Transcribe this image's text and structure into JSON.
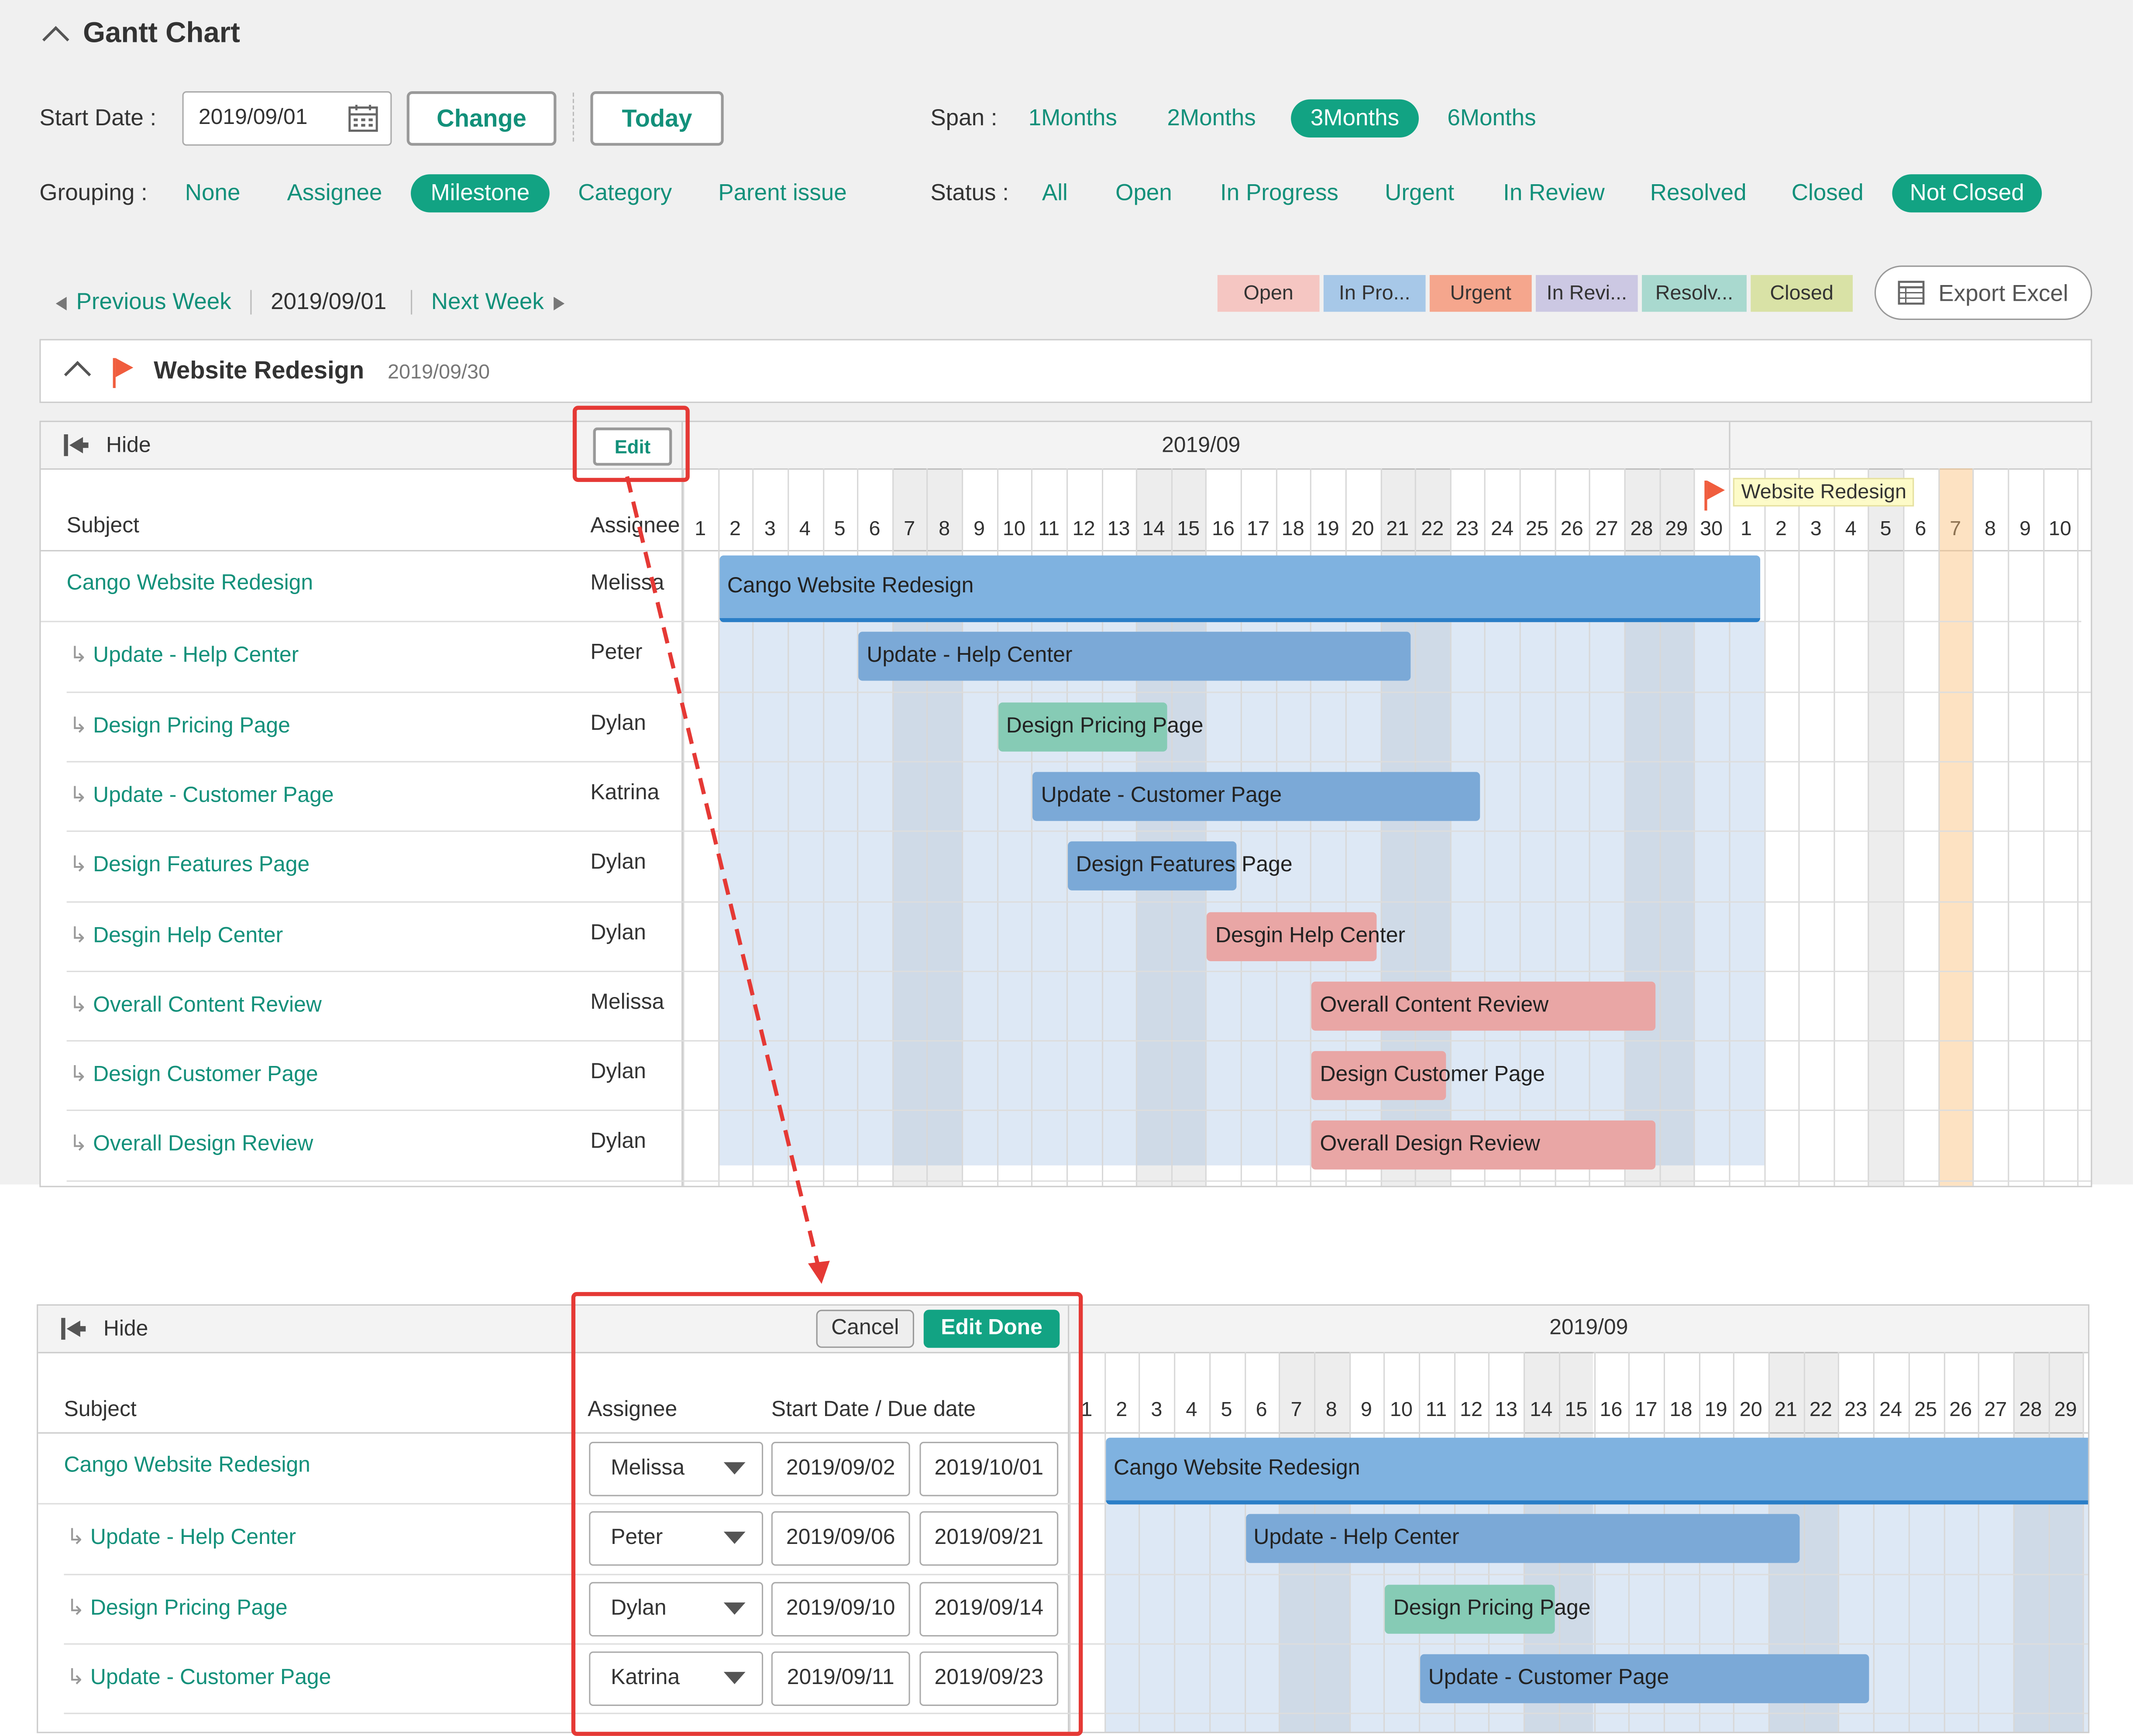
{
  "header": {
    "title": "Gantt Chart",
    "start_date_label": "Start Date :",
    "start_date_value": "2019/09/01",
    "change_label": "Change",
    "today_label": "Today",
    "span_label": "Span :",
    "span_options": [
      "1Months",
      "2Months",
      "3Months",
      "6Months"
    ],
    "span_selected": "3Months",
    "grouping_label": "Grouping :",
    "grouping_options": [
      "None",
      "Assignee",
      "Milestone",
      "Category",
      "Parent issue"
    ],
    "grouping_selected": "Milestone",
    "status_label": "Status :",
    "status_options": [
      "All",
      "Open",
      "In Progress",
      "Urgent",
      "In Review",
      "Resolved",
      "Closed",
      "Not Closed"
    ],
    "status_selected": "Not Closed"
  },
  "nav": {
    "previous_label": "Previous Week",
    "current_date": "2019/09/01",
    "next_label": "Next Week"
  },
  "legend": [
    {
      "label": "Open",
      "color": "#f5c6c2"
    },
    {
      "label": "In Pro...",
      "color": "#a7c8e8"
    },
    {
      "label": "Urgent",
      "color": "#f5a68d"
    },
    {
      "label": "In Revi...",
      "color": "#ccc8e3"
    },
    {
      "label": "Resolv...",
      "color": "#a9d9cf"
    },
    {
      "label": "Closed",
      "color": "#d9e2a6"
    }
  ],
  "export_label": "Export Excel",
  "milestone": {
    "name": "Website Redesign",
    "date": "2019/09/30"
  },
  "gantt": {
    "hide_label": "Hide",
    "edit_label": "Edit",
    "month_label": "2019/09",
    "subject_header": "Subject",
    "assignee_header": "Assignee",
    "milestone_marker_label": "Website Redesign",
    "days_top": [
      "1",
      "2",
      "3",
      "4",
      "5",
      "6",
      "7",
      "8",
      "9",
      "10",
      "11",
      "12",
      "13",
      "14",
      "15",
      "16",
      "17",
      "18",
      "19",
      "20",
      "21",
      "22",
      "23",
      "24",
      "25",
      "26",
      "27",
      "28",
      "29",
      "30",
      "1",
      "2",
      "3",
      "4",
      "5",
      "6",
      "7",
      "8",
      "9",
      "10"
    ],
    "tasks": [
      {
        "subject": "Cango Website Redesign",
        "assignee": "Melissa",
        "start": 2,
        "end": 31,
        "color": "#7fb2e0",
        "is_parent": true
      },
      {
        "subject": "Update - Help Center",
        "assignee": "Peter",
        "start": 6,
        "end": 21,
        "color": "#7ba9d7",
        "is_parent": false
      },
      {
        "subject": "Design Pricing Page",
        "assignee": "Dylan",
        "start": 10,
        "end": 14,
        "color": "#86cbb5",
        "is_parent": false
      },
      {
        "subject": "Update - Customer Page",
        "assignee": "Katrina",
        "start": 11,
        "end": 23,
        "color": "#7ba9d7",
        "is_parent": false
      },
      {
        "subject": "Design Features Page",
        "assignee": "Dylan",
        "start": 12,
        "end": 16,
        "color": "#7ba9d7",
        "is_parent": false
      },
      {
        "subject": "Desgin Help Center",
        "assignee": "Dylan",
        "start": 16,
        "end": 20,
        "color": "#e9a6a5",
        "is_parent": false
      },
      {
        "subject": "Overall Content Review",
        "assignee": "Melissa",
        "start": 19,
        "end": 28,
        "color": "#e9a6a5",
        "is_parent": false
      },
      {
        "subject": "Design Customer Page",
        "assignee": "Dylan",
        "start": 19,
        "end": 22,
        "color": "#e9a6a5",
        "is_parent": false
      },
      {
        "subject": "Overall Design Review",
        "assignee": "Dylan",
        "start": 19,
        "end": 28,
        "color": "#e9a6a5",
        "is_parent": false
      }
    ]
  },
  "edit_view": {
    "hide_label": "Hide",
    "cancel_label": "Cancel",
    "done_label": "Edit Done",
    "month_label": "2019/09",
    "subject_header": "Subject",
    "assignee_header": "Assignee",
    "dates_header": "Start Date / Due date",
    "days": [
      "1",
      "2",
      "3",
      "4",
      "5",
      "6",
      "7",
      "8",
      "9",
      "10",
      "11",
      "12",
      "13",
      "14",
      "15",
      "16",
      "17",
      "18",
      "19",
      "20",
      "21",
      "22",
      "23",
      "24",
      "25",
      "26",
      "27",
      "28",
      "29"
    ],
    "rows": [
      {
        "subject": "Cango Website Redesign",
        "assignee": "Melissa",
        "start_date": "2019/09/02",
        "due_date": "2019/10/01",
        "is_parent": true
      },
      {
        "subject": "Update - Help Center",
        "assignee": "Peter",
        "start_date": "2019/09/06",
        "due_date": "2019/09/21",
        "is_parent": false
      },
      {
        "subject": "Design Pricing Page",
        "assignee": "Dylan",
        "start_date": "2019/09/10",
        "due_date": "2019/09/14",
        "is_parent": false
      },
      {
        "subject": "Update - Customer Page",
        "assignee": "Katrina",
        "start_date": "2019/09/11",
        "due_date": "2019/09/23",
        "is_parent": false
      }
    ]
  }
}
